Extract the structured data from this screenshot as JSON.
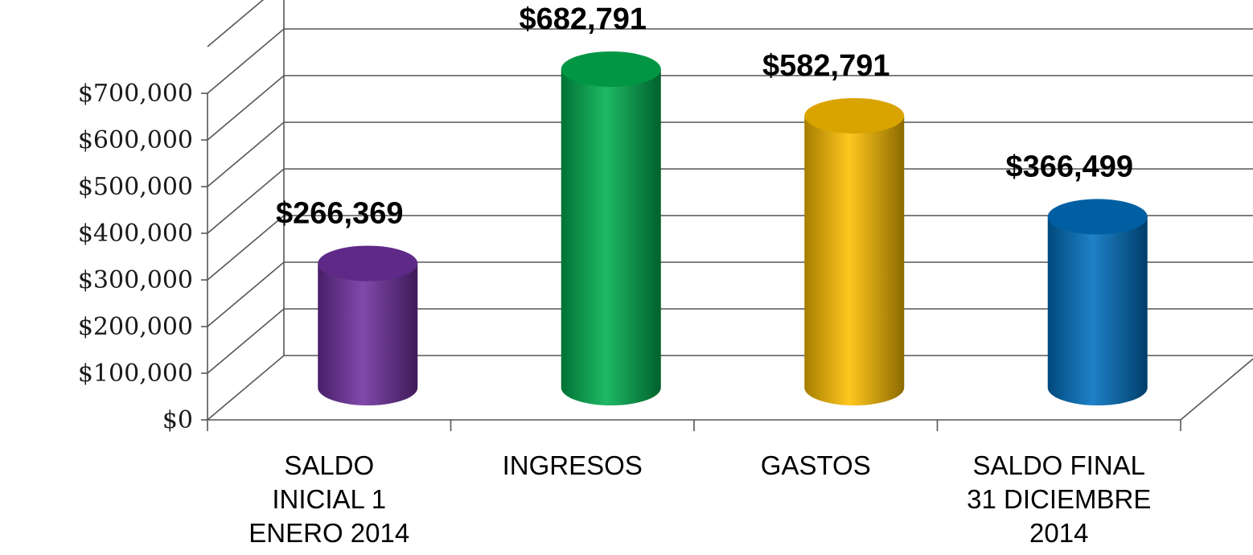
{
  "chart_data": {
    "type": "bar",
    "style": "3d-cylinder",
    "categories": [
      [
        "SALDO",
        "INICIAL 1",
        "ENERO 2014"
      ],
      [
        "INGRESOS"
      ],
      [
        "GASTOS"
      ],
      [
        "SALDO FINAL",
        "31 DICIEMBRE",
        "2014"
      ]
    ],
    "values": [
      266369,
      682791,
      582791,
      366499
    ],
    "data_labels": [
      "$266,369",
      "$682,791",
      "$582,791",
      "$366,499"
    ],
    "y_ticks": [
      "$0",
      "$100,000",
      "$200,000",
      "$300,000",
      "$400,000",
      "$500,000",
      "$600,000",
      "$700,000"
    ],
    "ylim": [
      0,
      700000
    ],
    "grid": true,
    "legend": "none",
    "colors": [
      "#7030a0",
      "#00b050",
      "#ffc000",
      "#0070c0"
    ]
  }
}
